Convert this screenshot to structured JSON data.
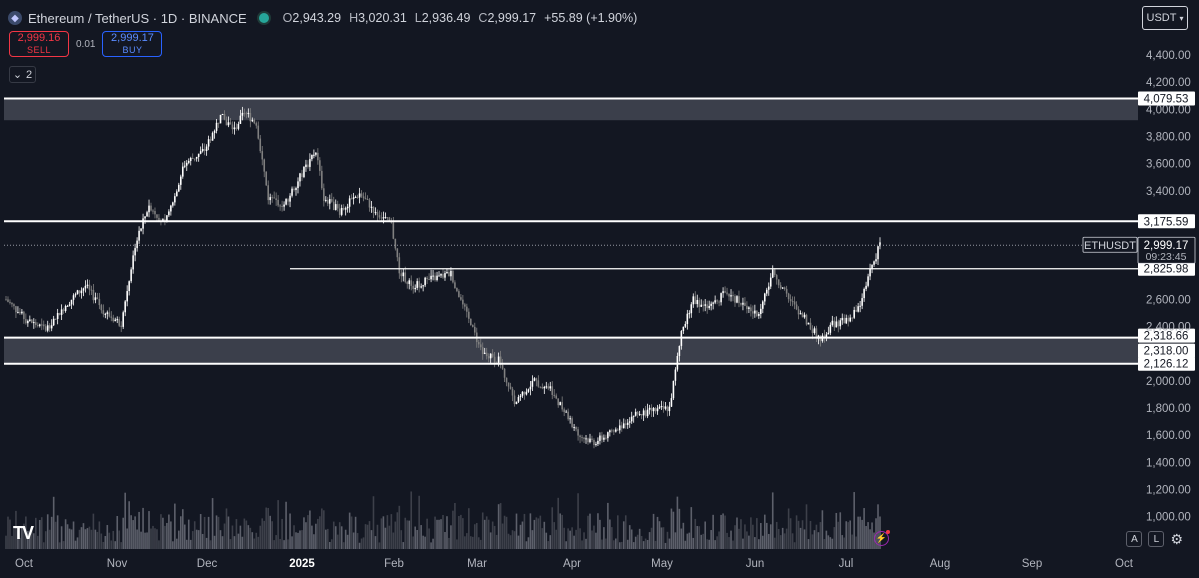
{
  "header": {
    "symbol_title": "Ethereum / TetherUS · 1D · BINANCE",
    "open_label": "O",
    "open": "2,943.29",
    "high_label": "H",
    "high": "3,020.31",
    "low_label": "L",
    "low": "2,936.49",
    "close_label": "C",
    "close": "2,999.17",
    "change": "+55.89 (+1.90%)"
  },
  "trade": {
    "sell_price": "2,999.16",
    "sell_label": "SELL",
    "spread": "0.01",
    "buy_price": "2,999.17",
    "buy_label": "BUY"
  },
  "indicators_toggle": {
    "count": "2"
  },
  "currency": {
    "selected": "USDT"
  },
  "price_axis": {
    "ticks": [
      "4,400.00",
      "4,200.00",
      "4,000.00",
      "3,800.00",
      "3,600.00",
      "3,400.00",
      "2,600.00",
      "2,400.00",
      "2,000.00",
      "1,800.00",
      "1,600.00",
      "1,400.00",
      "1,200.00",
      "1,000.00"
    ],
    "tick_values": [
      4400,
      4200,
      4000,
      3800,
      3600,
      3400,
      2600,
      2400,
      2000,
      1800,
      1600,
      1400,
      1200,
      1000
    ]
  },
  "levels": [
    {
      "label": "4,079.53",
      "value": 4079.53
    },
    {
      "label": "3,175.59",
      "value": 3175.59
    },
    {
      "label": "2,825.98",
      "value": 2825.98
    },
    {
      "label": "2,318.66",
      "value": 2318.66
    },
    {
      "label": "2,318.00",
      "value": 2318.0
    },
    {
      "label": "2,126.12",
      "value": 2126.12
    }
  ],
  "zones": [
    {
      "top": 4079.53,
      "bottom": 3920
    },
    {
      "top": 2318.66,
      "bottom": 2126.12
    }
  ],
  "current_price": {
    "symbol_tag": "ETHUSDT",
    "price": "2,999.17",
    "value": 2999.17,
    "countdown": "09:23:45"
  },
  "time_axis": {
    "labels": [
      "Oct",
      "Nov",
      "Dec",
      "2025",
      "Feb",
      "Mar",
      "Apr",
      "May",
      "Jun",
      "Jul",
      "Aug",
      "Sep",
      "Oct"
    ]
  },
  "bottom_controls": {
    "auto_label": "A",
    "log_label": "L"
  },
  "logo": {
    "text": "TV"
  },
  "colors": {
    "background": "#131722",
    "candle_up": "#ffffff",
    "candle_down": "#808080",
    "zone": "#4a4e5a",
    "sell": "#f23645",
    "buy": "#2962ff"
  },
  "chart_data": {
    "type": "line",
    "title": "Ethereum / TetherUS · 1D · BINANCE",
    "ylim": [
      900,
      4500
    ],
    "x": [
      "Oct",
      "Nov",
      "Dec",
      "2025",
      "Feb",
      "Mar",
      "Apr",
      "May",
      "Jun",
      "Jul"
    ],
    "series": [
      {
        "values": [
          2600,
          2400,
          3600,
          3400,
          3200,
          2200,
          1600,
          2500,
          2500,
          2999
        ]
      }
    ]
  }
}
